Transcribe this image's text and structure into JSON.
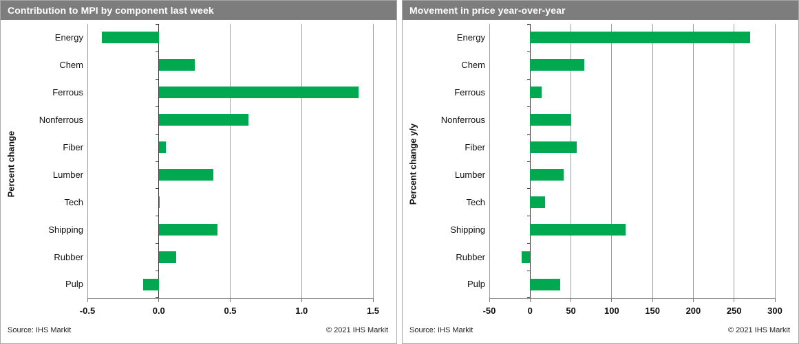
{
  "panels": [
    {
      "title": "Contribution to MPI by component last week",
      "source": "Source:  IHS Markit",
      "copyright": "© 2021  IHS Markit"
    },
    {
      "title": "Movement in price year-over-year",
      "source": "Source:  IHS Markit",
      "copyright": "© 2021  IHS Markit"
    }
  ],
  "colors": {
    "bar_green": "#00A84F",
    "title_bar_gray": "#7D7D7D",
    "gridline_gray": "#9B9B9B",
    "axis_dark": "#3C3C3C"
  },
  "chart_data": [
    {
      "type": "bar",
      "orientation": "horizontal",
      "title": "Contribution to MPI by component last week",
      "categories": [
        "Energy",
        "Chem",
        "Ferrous",
        "Nonferrous",
        "Fiber",
        "Lumber",
        "Tech",
        "Shipping",
        "Rubber",
        "Pulp"
      ],
      "values": [
        -0.4,
        0.25,
        1.4,
        0.63,
        0.05,
        0.38,
        0.005,
        0.41,
        0.12,
        -0.11
      ],
      "xlabel": "",
      "ylabel": "Percent change",
      "xlim": [
        -0.5,
        1.5
      ],
      "xticks": [
        -0.5,
        0,
        0.5,
        1.0,
        1.5
      ],
      "xtick_labels": [
        "-0.5",
        "0.0",
        "0.5",
        "1.0",
        "1.5"
      ],
      "grid": true,
      "legend": false,
      "bar_color": "#00A84F"
    },
    {
      "type": "bar",
      "orientation": "horizontal",
      "title": "Movement in price year-over-year",
      "categories": [
        "Energy",
        "Chem",
        "Ferrous",
        "Nonferrous",
        "Fiber",
        "Lumber",
        "Tech",
        "Shipping",
        "Rubber",
        "Pulp"
      ],
      "values": [
        270,
        66,
        14,
        50,
        57,
        41,
        18,
        117,
        -10,
        37
      ],
      "xlabel": "",
      "ylabel": "Percent change y/y",
      "xlim": [
        -50,
        300
      ],
      "xticks": [
        -50,
        0,
        50,
        100,
        150,
        200,
        250,
        300
      ],
      "xtick_labels": [
        "-50",
        "0",
        "50",
        "100",
        "150",
        "200",
        "250",
        "300"
      ],
      "grid": true,
      "legend": false,
      "bar_color": "#00A84F"
    }
  ]
}
